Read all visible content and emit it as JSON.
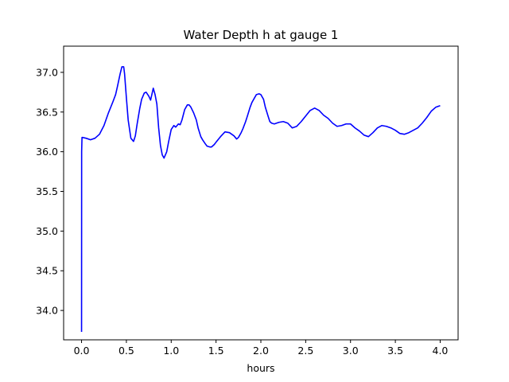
{
  "chart_data": {
    "type": "line",
    "title": "Water Depth h at gauge 1",
    "xlabel": "hours",
    "ylabel": "",
    "xlim": [
      -0.2,
      4.2
    ],
    "ylim": [
      33.63,
      37.33
    ],
    "xticks": [
      0.0,
      0.5,
      1.0,
      1.5,
      2.0,
      2.5,
      3.0,
      3.5,
      4.0
    ],
    "xtick_labels": [
      "0.0",
      "0.5",
      "1.0",
      "1.5",
      "2.0",
      "2.5",
      "3.0",
      "3.5",
      "4.0"
    ],
    "yticks": [
      34.0,
      34.5,
      35.0,
      35.5,
      36.0,
      36.5,
      37.0
    ],
    "ytick_labels": [
      "34.0",
      "34.5",
      "35.0",
      "35.5",
      "36.0",
      "36.5",
      "37.0"
    ],
    "grid": false,
    "series": [
      {
        "color": "#0000ff",
        "x": [
          0.0,
          0.001,
          0.005,
          0.01,
          0.05,
          0.1,
          0.15,
          0.2,
          0.25,
          0.3,
          0.35,
          0.38,
          0.4,
          0.43,
          0.45,
          0.47,
          0.48,
          0.5,
          0.52,
          0.55,
          0.58,
          0.6,
          0.62,
          0.65,
          0.67,
          0.7,
          0.72,
          0.75,
          0.77,
          0.8,
          0.82,
          0.84,
          0.86,
          0.88,
          0.9,
          0.92,
          0.95,
          0.97,
          1.0,
          1.03,
          1.05,
          1.08,
          1.1,
          1.12,
          1.15,
          1.18,
          1.2,
          1.22,
          1.25,
          1.28,
          1.3,
          1.33,
          1.35,
          1.38,
          1.4,
          1.43,
          1.45,
          1.48,
          1.5,
          1.55,
          1.6,
          1.65,
          1.7,
          1.73,
          1.75,
          1.78,
          1.8,
          1.83,
          1.85,
          1.88,
          1.9,
          1.93,
          1.95,
          1.98,
          2.0,
          2.03,
          2.05,
          2.08,
          2.1,
          2.12,
          2.15,
          2.2,
          2.25,
          2.3,
          2.35,
          2.4,
          2.45,
          2.5,
          2.55,
          2.6,
          2.65,
          2.7,
          2.75,
          2.8,
          2.85,
          2.9,
          2.95,
          3.0,
          3.05,
          3.1,
          3.15,
          3.2,
          3.25,
          3.3,
          3.35,
          3.4,
          3.45,
          3.5,
          3.55,
          3.6,
          3.65,
          3.7,
          3.75,
          3.8,
          3.85,
          3.9,
          3.95,
          4.0
        ],
        "values": [
          33.73,
          36.0,
          36.18,
          36.18,
          36.17,
          36.15,
          36.17,
          36.22,
          36.33,
          36.49,
          36.63,
          36.72,
          36.82,
          36.98,
          37.07,
          37.07,
          36.98,
          36.68,
          36.4,
          36.17,
          36.13,
          36.2,
          36.35,
          36.55,
          36.66,
          36.74,
          36.75,
          36.7,
          36.65,
          36.8,
          36.72,
          36.6,
          36.3,
          36.08,
          35.96,
          35.92,
          36.0,
          36.12,
          36.28,
          36.33,
          36.31,
          36.35,
          36.34,
          36.4,
          36.53,
          36.59,
          36.59,
          36.56,
          36.49,
          36.4,
          36.3,
          36.19,
          36.15,
          36.1,
          36.07,
          36.06,
          36.06,
          36.09,
          36.12,
          36.19,
          36.25,
          36.24,
          36.2,
          36.16,
          36.18,
          36.24,
          36.29,
          36.38,
          36.45,
          36.56,
          36.62,
          36.68,
          36.72,
          36.73,
          36.72,
          36.66,
          36.56,
          36.45,
          36.38,
          36.36,
          36.35,
          36.37,
          36.38,
          36.36,
          36.3,
          36.32,
          36.38,
          36.45,
          36.52,
          36.55,
          36.52,
          36.46,
          36.42,
          36.36,
          36.32,
          36.33,
          36.35,
          36.35,
          36.3,
          36.26,
          36.21,
          36.19,
          36.24,
          36.3,
          36.33,
          36.32,
          36.3,
          36.27,
          36.23,
          36.22,
          36.24,
          36.27,
          36.3,
          36.36,
          36.43,
          36.51,
          36.56,
          36.58
        ]
      }
    ]
  }
}
